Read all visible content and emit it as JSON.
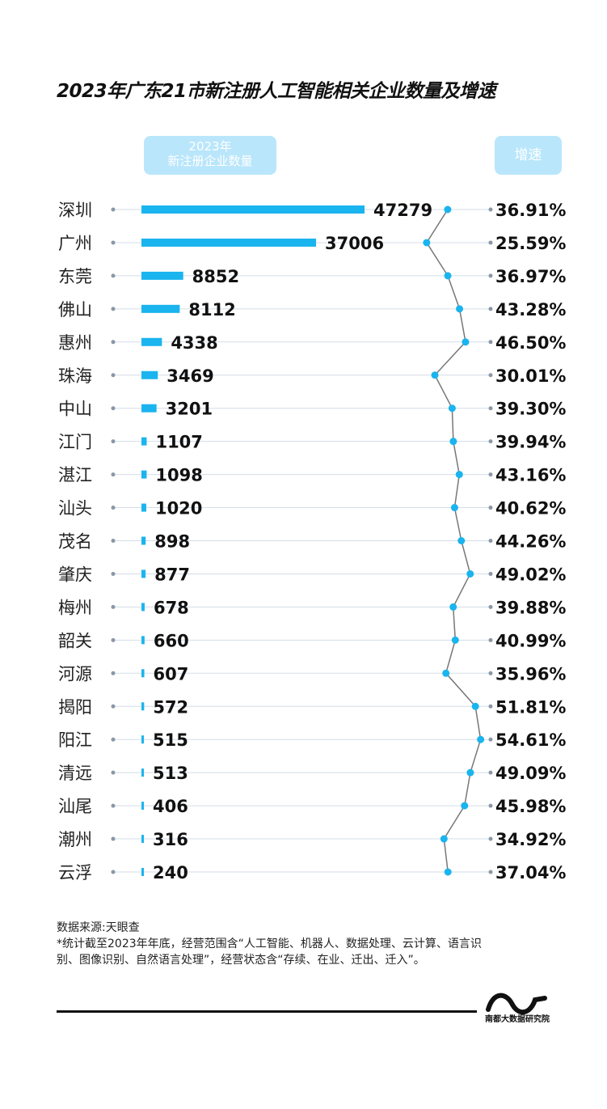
{
  "title": "2023年广东21市新注册人工智能相关企业数量及增速",
  "headers": {
    "count_line1": "2023年",
    "count_line2": "新注册企业数量",
    "growth": "增速"
  },
  "chart_data": {
    "type": "bar",
    "title": "2023年广东21市新注册人工智能相关企业数量及增速",
    "categories": [
      "深圳",
      "广州",
      "东莞",
      "佛山",
      "惠州",
      "珠海",
      "中山",
      "江门",
      "湛江",
      "汕头",
      "茂名",
      "肇庆",
      "梅州",
      "韶关",
      "河源",
      "揭阳",
      "阳江",
      "清远",
      "汕尾",
      "潮州",
      "云浮"
    ],
    "series": [
      {
        "name": "2023年新注册企业数量",
        "values": [
          47279,
          37006,
          8852,
          8112,
          4338,
          3469,
          3201,
          1107,
          1098,
          1020,
          898,
          877,
          678,
          660,
          607,
          572,
          515,
          513,
          406,
          316,
          240
        ]
      },
      {
        "name": "增速",
        "values": [
          "36.91%",
          "25.59%",
          "36.97%",
          "43.28%",
          "46.50%",
          "30.01%",
          "39.30%",
          "39.94%",
          "43.16%",
          "40.62%",
          "44.26%",
          "49.02%",
          "39.88%",
          "40.99%",
          "35.96%",
          "51.81%",
          "54.61%",
          "49.09%",
          "45.98%",
          "34.92%",
          "37.04%"
        ]
      }
    ],
    "colors": {
      "bar": "#1ab4ee",
      "line": "#777777",
      "dot": "#1ab4ee",
      "grid": "#d3dde8"
    }
  },
  "footer": {
    "source": "数据来源:天眼查",
    "note": "*统计截至2023年年底，经营范围含“人工智能、机器人、数据处理、云计算、语言识别、图像识别、自然语言处理”，经营状态含“存续、在业、迁出、迁入”。",
    "logo_text": "南都大数据研究院"
  }
}
